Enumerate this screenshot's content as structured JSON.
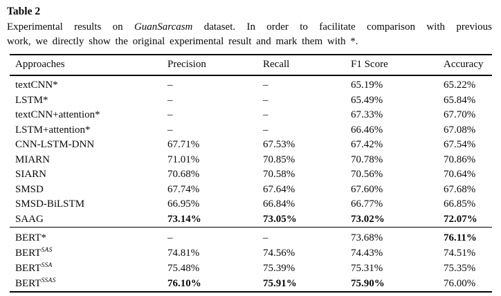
{
  "caption": {
    "label": "Table 2",
    "line1_pre": "Experimental results on ",
    "line1_italic": "GuanSarcasm",
    "line1_post": " dataset. In order to facilitate comparison with previous",
    "line2": "work, we directly show the original experimental result and mark them with *."
  },
  "table": {
    "headers": [
      "Approaches",
      "Precision",
      "Recall",
      "F1 Score",
      "Accuracy"
    ],
    "sections": [
      {
        "rows": [
          {
            "approach": "textCNN*",
            "sup": "",
            "values": [
              "–",
              "–",
              "65.19%",
              "65.22%"
            ],
            "bold": [
              false,
              false,
              false,
              false
            ]
          },
          {
            "approach": "LSTM*",
            "sup": "",
            "values": [
              "–",
              "–",
              "65.49%",
              "65.84%"
            ],
            "bold": [
              false,
              false,
              false,
              false
            ]
          },
          {
            "approach": "textCNN+attention*",
            "sup": "",
            "values": [
              "–",
              "–",
              "67.33%",
              "67.70%"
            ],
            "bold": [
              false,
              false,
              false,
              false
            ]
          },
          {
            "approach": "LSTM+attention*",
            "sup": "",
            "values": [
              "–",
              "–",
              "66.46%",
              "67.08%"
            ],
            "bold": [
              false,
              false,
              false,
              false
            ]
          },
          {
            "approach": "CNN-LSTM-DNN",
            "sup": "",
            "values": [
              "67.71%",
              "67.53%",
              "67.42%",
              "67.54%"
            ],
            "bold": [
              false,
              false,
              false,
              false
            ]
          },
          {
            "approach": "MIARN",
            "sup": "",
            "values": [
              "71.01%",
              "70.85%",
              "70.78%",
              "70.86%"
            ],
            "bold": [
              false,
              false,
              false,
              false
            ]
          },
          {
            "approach": "SIARN",
            "sup": "",
            "values": [
              "70.68%",
              "70.58%",
              "70.56%",
              "70.64%"
            ],
            "bold": [
              false,
              false,
              false,
              false
            ]
          },
          {
            "approach": "SMSD",
            "sup": "",
            "values": [
              "67.74%",
              "67.64%",
              "67.60%",
              "67.68%"
            ],
            "bold": [
              false,
              false,
              false,
              false
            ]
          },
          {
            "approach": "SMSD-BiLSTM",
            "sup": "",
            "values": [
              "66.95%",
              "66.84%",
              "66.77%",
              "66.85%"
            ],
            "bold": [
              false,
              false,
              false,
              false
            ]
          },
          {
            "approach": "SAAG",
            "sup": "",
            "values": [
              "73.14%",
              "73.05%",
              "73.02%",
              "72.07%"
            ],
            "bold": [
              true,
              true,
              true,
              true
            ]
          }
        ]
      },
      {
        "rows": [
          {
            "approach": "BERT*",
            "sup": "",
            "values": [
              "–",
              "–",
              "73.68%",
              "76.11%"
            ],
            "bold": [
              false,
              false,
              false,
              true
            ]
          },
          {
            "approach": "BERT",
            "sup": "SAS",
            "values": [
              "74.81%",
              "74.56%",
              "74.43%",
              "74.51%"
            ],
            "bold": [
              false,
              false,
              false,
              false
            ]
          },
          {
            "approach": "BERT",
            "sup": "SSA",
            "values": [
              "75.48%",
              "75.39%",
              "75.31%",
              "75.35%"
            ],
            "bold": [
              false,
              false,
              false,
              false
            ]
          },
          {
            "approach": "BERT",
            "sup": "SSAS",
            "values": [
              "76.10%",
              "75.91%",
              "75.90%",
              "76.00%"
            ],
            "bold": [
              true,
              true,
              true,
              false
            ]
          }
        ]
      }
    ]
  }
}
